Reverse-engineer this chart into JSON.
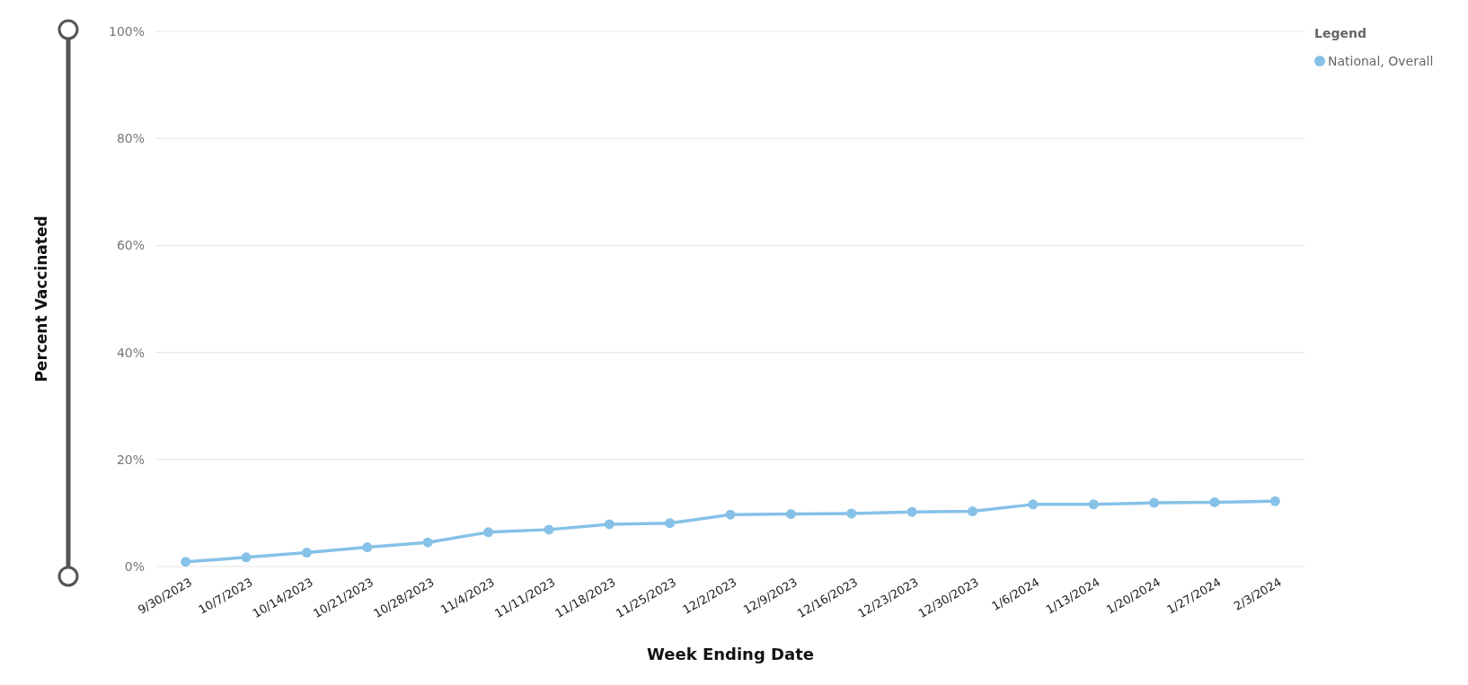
{
  "chart_data": {
    "type": "line",
    "xlabel": "Week Ending Date",
    "ylabel": "Percent Vaccinated",
    "legend_title": "Legend",
    "categories": [
      "9/30/2023",
      "10/7/2023",
      "10/14/2023",
      "10/21/2023",
      "10/28/2023",
      "11/4/2023",
      "11/11/2023",
      "11/18/2023",
      "11/25/2023",
      "12/2/2023",
      "12/9/2023",
      "12/16/2023",
      "12/23/2023",
      "12/30/2023",
      "1/6/2024",
      "1/13/2024",
      "1/20/2024",
      "1/27/2024",
      "2/3/2024"
    ],
    "series": [
      {
        "name": "National, Overall",
        "color": "#86c1e8",
        "values": [
          0.9,
          1.7,
          2.6,
          3.6,
          4.5,
          6.4,
          6.9,
          7.9,
          8.1,
          9.7,
          9.8,
          9.9,
          10.2,
          10.3,
          11.6,
          11.6,
          11.9,
          12.0,
          12.2
        ]
      }
    ],
    "ylim": [
      0,
      100
    ],
    "yticks": [
      {
        "value": 0,
        "label": "0%"
      },
      {
        "value": 20,
        "label": "20%"
      },
      {
        "value": 40,
        "label": "40%"
      },
      {
        "value": 60,
        "label": "60%"
      },
      {
        "value": 80,
        "label": "80%"
      },
      {
        "value": 100,
        "label": "100%"
      }
    ],
    "grid": "y",
    "legend": "top right",
    "marker": "circle",
    "line_style": "solid"
  }
}
